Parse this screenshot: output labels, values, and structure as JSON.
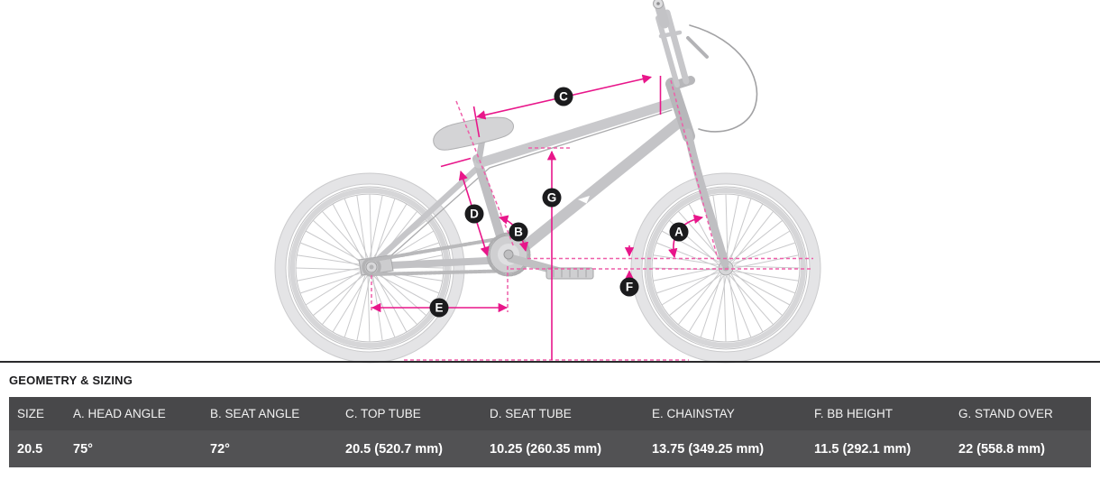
{
  "colors": {
    "accent_magenta_solid": "#e8168a",
    "accent_magenta_dashed": "#ee5fa9",
    "table_header_bg": "#48484a",
    "table_row_bg": "#525254",
    "table_text": "#ffffff",
    "heading_text": "#1b1b1d",
    "bike_gray": "#c6c6c8",
    "marker_bg": "#1b1b1d"
  },
  "diagram": {
    "markers": [
      "A",
      "B",
      "C",
      "D",
      "E",
      "F",
      "G"
    ]
  },
  "section_heading": "GEOMETRY & SIZING",
  "table": {
    "columns": [
      "SIZE",
      "A. HEAD ANGLE",
      "B. SEAT ANGLE",
      "C. TOP TUBE",
      "D. SEAT TUBE",
      "E. CHAINSTAY",
      "F. BB HEIGHT",
      "G. STAND OVER"
    ],
    "rows": [
      [
        "20.5",
        "75°",
        "72°",
        "20.5 (520.7 mm)",
        "10.25 (260.35 mm)",
        "13.75 (349.25 mm)",
        "11.5 (292.1 mm)",
        "22 (558.8 mm)"
      ]
    ]
  }
}
